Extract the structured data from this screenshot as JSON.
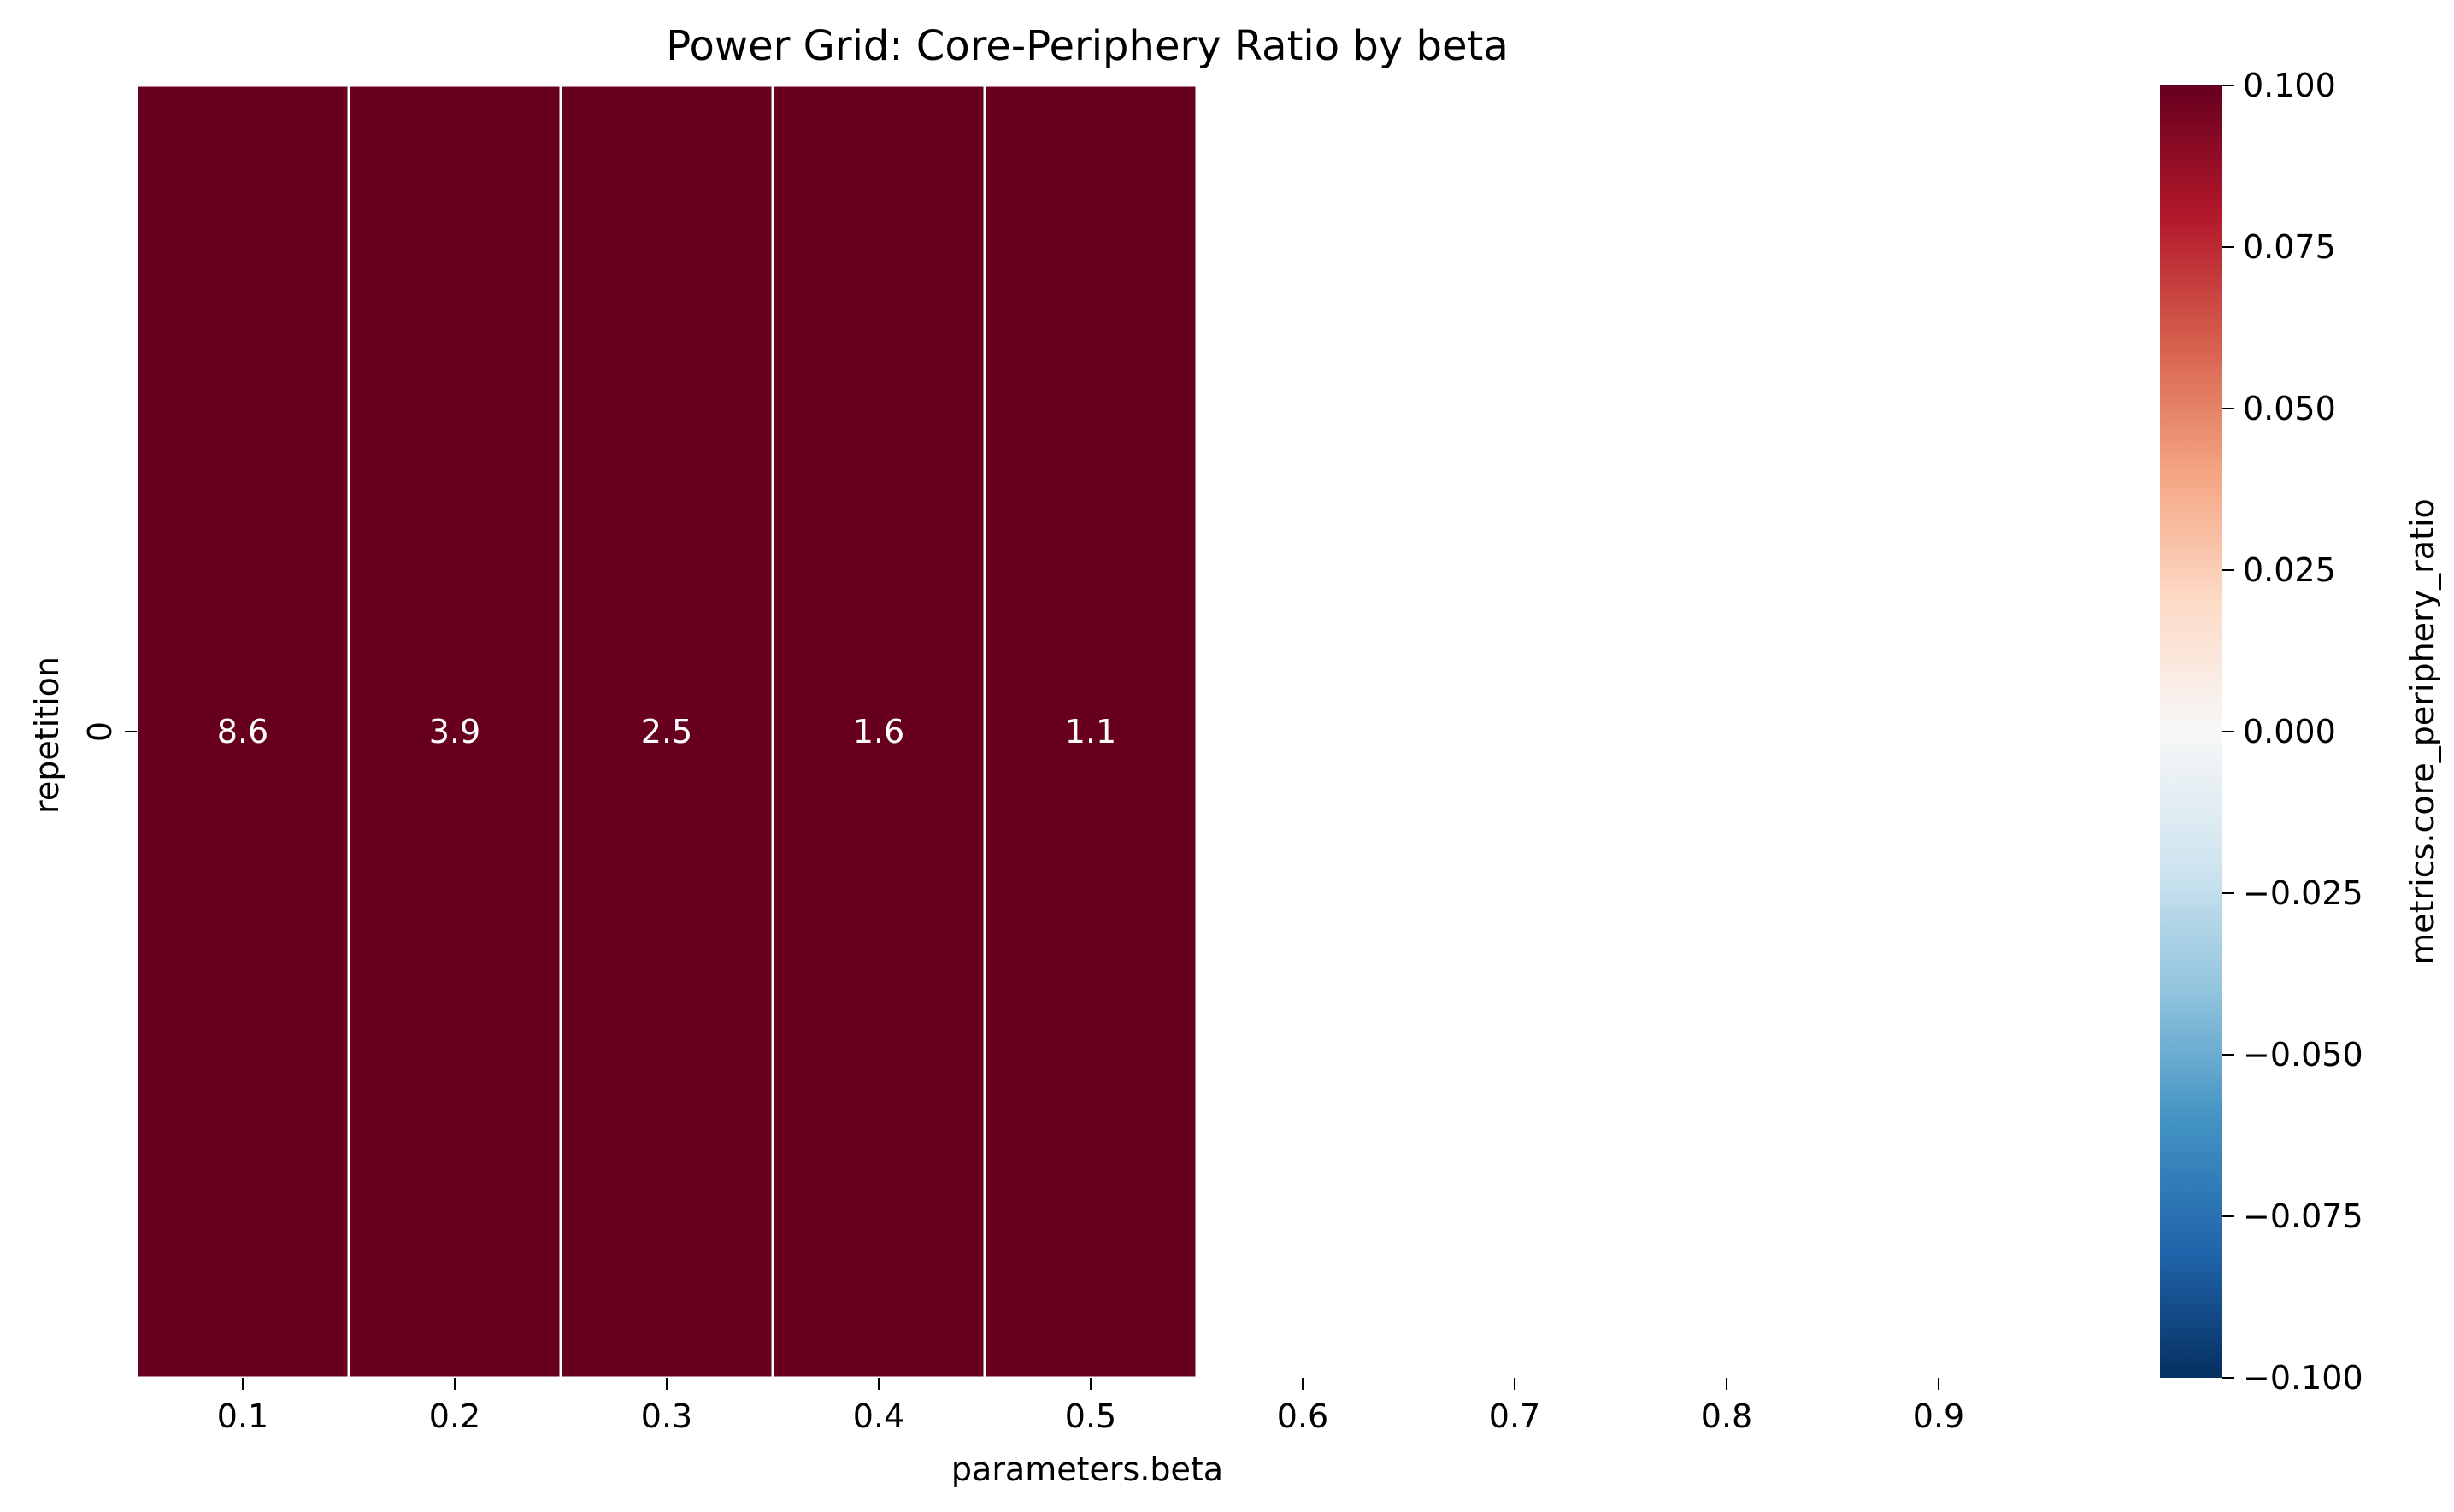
{
  "chart_data": {
    "type": "heatmap",
    "title": "Power Grid: Core-Periphery Ratio by beta",
    "xlabel": "parameters.beta",
    "ylabel": "repetition",
    "x_categories": [
      "0.1",
      "0.2",
      "0.3",
      "0.4",
      "0.5",
      "0.6",
      "0.7",
      "0.8",
      "0.9"
    ],
    "y_categories": [
      "0"
    ],
    "values": [
      [
        8.6,
        3.9,
        2.5,
        1.6,
        1.1,
        null,
        null,
        null,
        null
      ]
    ],
    "annotations": [
      [
        "8.6",
        "3.9",
        "2.5",
        "1.6",
        "1.1",
        "",
        "",
        "",
        ""
      ]
    ],
    "colorbar": {
      "label": "metrics.core_periphery_ratio",
      "range": [
        -0.1,
        0.1
      ],
      "tick_labels": [
        "0.100",
        "0.075",
        "0.050",
        "0.025",
        "0.000",
        "−0.025",
        "−0.050",
        "−0.075",
        "−0.100"
      ],
      "colors": [
        "#67001f",
        "#b2182b",
        "#d6604d",
        "#f4a582",
        "#fddbc7",
        "#f7f7f7",
        "#d1e5f0",
        "#92c5de",
        "#4393c3",
        "#2166ac",
        "#053061"
      ]
    },
    "cell_border_color": "#ffffff",
    "annotation_color": "#ffffff"
  }
}
